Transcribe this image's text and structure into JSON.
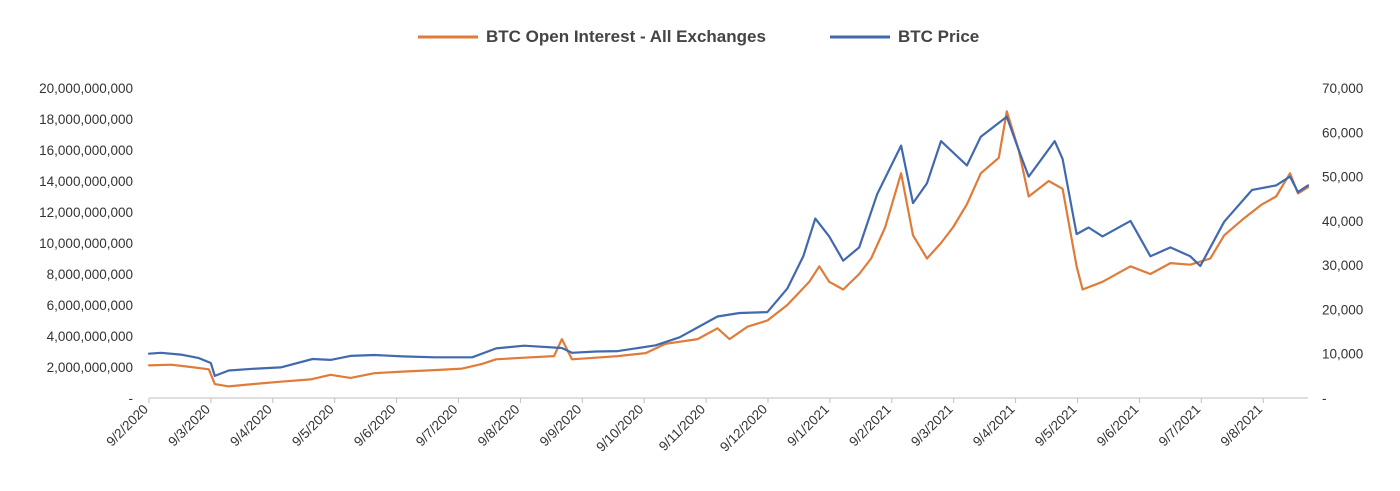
{
  "chart_data": {
    "type": "line",
    "title": "",
    "xlabel": "",
    "ylabel": "",
    "legend_position": "top-center",
    "grid": false,
    "x_tick_labels": [
      "9/2/2020",
      "9/3/2020",
      "9/4/2020",
      "9/5/2020",
      "9/6/2020",
      "9/7/2020",
      "9/8/2020",
      "9/9/2020",
      "9/10/2020",
      "9/11/2020",
      "9/12/2020",
      "9/1/2021",
      "9/2/2021",
      "9/3/2021",
      "9/4/2021",
      "9/5/2021",
      "9/6/2021",
      "9/7/2021",
      "9/8/2021"
    ],
    "x_range": [
      "2020-02-09",
      "2021-09-12"
    ],
    "y_left": {
      "range": [
        0,
        20000000000
      ],
      "tick_labels": [
        "-",
        "2,000,000,000",
        "4,000,000,000",
        "6,000,000,000",
        "8,000,000,000",
        "10,000,000,000",
        "12,000,000,000",
        "14,000,000,000",
        "16,000,000,000",
        "18,000,000,000",
        "20,000,000,000"
      ]
    },
    "y_right": {
      "range": [
        0,
        70000
      ],
      "tick_labels": [
        "-",
        "10,000",
        "20,000",
        "30,000",
        "40,000",
        "50,000",
        "60,000",
        "70,000"
      ]
    },
    "series": [
      {
        "name": "BTC Open Interest - All Exchanges",
        "axis": "left",
        "color": "#E07B39",
        "points": [
          [
            "2020-02-09",
            2100000000
          ],
          [
            "2020-02-20",
            2150000000
          ],
          [
            "2020-03-01",
            2000000000
          ],
          [
            "2020-03-10",
            1850000000
          ],
          [
            "2020-03-13",
            900000000
          ],
          [
            "2020-03-20",
            750000000
          ],
          [
            "2020-04-01",
            900000000
          ],
          [
            "2020-04-15",
            1050000000
          ],
          [
            "2020-04-30",
            1200000000
          ],
          [
            "2020-05-10",
            1500000000
          ],
          [
            "2020-05-20",
            1300000000
          ],
          [
            "2020-06-01",
            1600000000
          ],
          [
            "2020-06-15",
            1700000000
          ],
          [
            "2020-07-01",
            1800000000
          ],
          [
            "2020-07-15",
            1900000000
          ],
          [
            "2020-07-25",
            2200000000
          ],
          [
            "2020-08-01",
            2500000000
          ],
          [
            "2020-08-15",
            2600000000
          ],
          [
            "2020-08-30",
            2700000000
          ],
          [
            "2020-09-03",
            3800000000
          ],
          [
            "2020-09-08",
            2500000000
          ],
          [
            "2020-09-20",
            2600000000
          ],
          [
            "2020-10-01",
            2700000000
          ],
          [
            "2020-10-15",
            2900000000
          ],
          [
            "2020-10-25",
            3500000000
          ],
          [
            "2020-11-10",
            3800000000
          ],
          [
            "2020-11-20",
            4500000000
          ],
          [
            "2020-11-26",
            3800000000
          ],
          [
            "2020-12-05",
            4600000000
          ],
          [
            "2020-12-15",
            5000000000
          ],
          [
            "2020-12-25",
            6000000000
          ],
          [
            "2021-01-05",
            7500000000
          ],
          [
            "2021-01-10",
            8500000000
          ],
          [
            "2021-01-15",
            7500000000
          ],
          [
            "2021-01-22",
            7000000000
          ],
          [
            "2021-01-30",
            8000000000
          ],
          [
            "2021-02-05",
            9000000000
          ],
          [
            "2021-02-12",
            11000000000
          ],
          [
            "2021-02-20",
            14500000000
          ],
          [
            "2021-02-26",
            10500000000
          ],
          [
            "2021-03-05",
            9000000000
          ],
          [
            "2021-03-12",
            10000000000
          ],
          [
            "2021-03-18",
            11000000000
          ],
          [
            "2021-03-25",
            12500000000
          ],
          [
            "2021-04-01",
            14500000000
          ],
          [
            "2021-04-10",
            15500000000
          ],
          [
            "2021-04-14",
            18500000000
          ],
          [
            "2021-04-20",
            16000000000
          ],
          [
            "2021-04-25",
            13000000000
          ],
          [
            "2021-05-05",
            14000000000
          ],
          [
            "2021-05-12",
            13500000000
          ],
          [
            "2021-05-19",
            8500000000
          ],
          [
            "2021-05-22",
            7000000000
          ],
          [
            "2021-06-01",
            7500000000
          ],
          [
            "2021-06-15",
            8500000000
          ],
          [
            "2021-06-25",
            8000000000
          ],
          [
            "2021-07-05",
            8700000000
          ],
          [
            "2021-07-15",
            8600000000
          ],
          [
            "2021-07-25",
            9000000000
          ],
          [
            "2021-08-01",
            10500000000
          ],
          [
            "2021-08-10",
            11500000000
          ],
          [
            "2021-08-20",
            12500000000
          ],
          [
            "2021-08-27",
            13000000000
          ],
          [
            "2021-09-03",
            14500000000
          ],
          [
            "2021-09-07",
            13200000000
          ],
          [
            "2021-09-12",
            13600000000
          ]
        ]
      },
      {
        "name": "BTC Price",
        "axis": "right",
        "color": "#4169AE",
        "points": [
          [
            "2020-02-09",
            10000
          ],
          [
            "2020-02-15",
            10200
          ],
          [
            "2020-02-25",
            9800
          ],
          [
            "2020-03-05",
            9000
          ],
          [
            "2020-03-11",
            7900
          ],
          [
            "2020-03-13",
            5000
          ],
          [
            "2020-03-20",
            6200
          ],
          [
            "2020-04-01",
            6600
          ],
          [
            "2020-04-15",
            6900
          ],
          [
            "2020-05-01",
            8800
          ],
          [
            "2020-05-10",
            8600
          ],
          [
            "2020-05-20",
            9500
          ],
          [
            "2020-06-01",
            9700
          ],
          [
            "2020-06-15",
            9400
          ],
          [
            "2020-07-01",
            9200
          ],
          [
            "2020-07-20",
            9200
          ],
          [
            "2020-08-01",
            11200
          ],
          [
            "2020-08-15",
            11800
          ],
          [
            "2020-09-03",
            11300
          ],
          [
            "2020-09-08",
            10200
          ],
          [
            "2020-09-20",
            10500
          ],
          [
            "2020-10-01",
            10600
          ],
          [
            "2020-10-20",
            11900
          ],
          [
            "2020-11-01",
            13700
          ],
          [
            "2020-11-20",
            18400
          ],
          [
            "2020-12-01",
            19200
          ],
          [
            "2020-12-15",
            19400
          ],
          [
            "2020-12-25",
            24700
          ],
          [
            "2021-01-02",
            32000
          ],
          [
            "2021-01-08",
            40500
          ],
          [
            "2021-01-15",
            36500
          ],
          [
            "2021-01-22",
            31000
          ],
          [
            "2021-01-30",
            34000
          ],
          [
            "2021-02-08",
            46000
          ],
          [
            "2021-02-20",
            57000
          ],
          [
            "2021-02-26",
            44000
          ],
          [
            "2021-03-05",
            48500
          ],
          [
            "2021-03-12",
            58000
          ],
          [
            "2021-03-25",
            52500
          ],
          [
            "2021-04-01",
            59000
          ],
          [
            "2021-04-14",
            63500
          ],
          [
            "2021-04-20",
            56000
          ],
          [
            "2021-04-25",
            50000
          ],
          [
            "2021-05-08",
            58000
          ],
          [
            "2021-05-12",
            54000
          ],
          [
            "2021-05-19",
            37000
          ],
          [
            "2021-05-25",
            38500
          ],
          [
            "2021-06-01",
            36500
          ],
          [
            "2021-06-15",
            40000
          ],
          [
            "2021-06-25",
            32000
          ],
          [
            "2021-07-05",
            34000
          ],
          [
            "2021-07-15",
            32000
          ],
          [
            "2021-07-20",
            29800
          ],
          [
            "2021-08-01",
            39800
          ],
          [
            "2021-08-15",
            47000
          ],
          [
            "2021-08-27",
            48000
          ],
          [
            "2021-09-03",
            50000
          ],
          [
            "2021-09-07",
            46500
          ],
          [
            "2021-09-12",
            48000
          ]
        ]
      }
    ]
  }
}
